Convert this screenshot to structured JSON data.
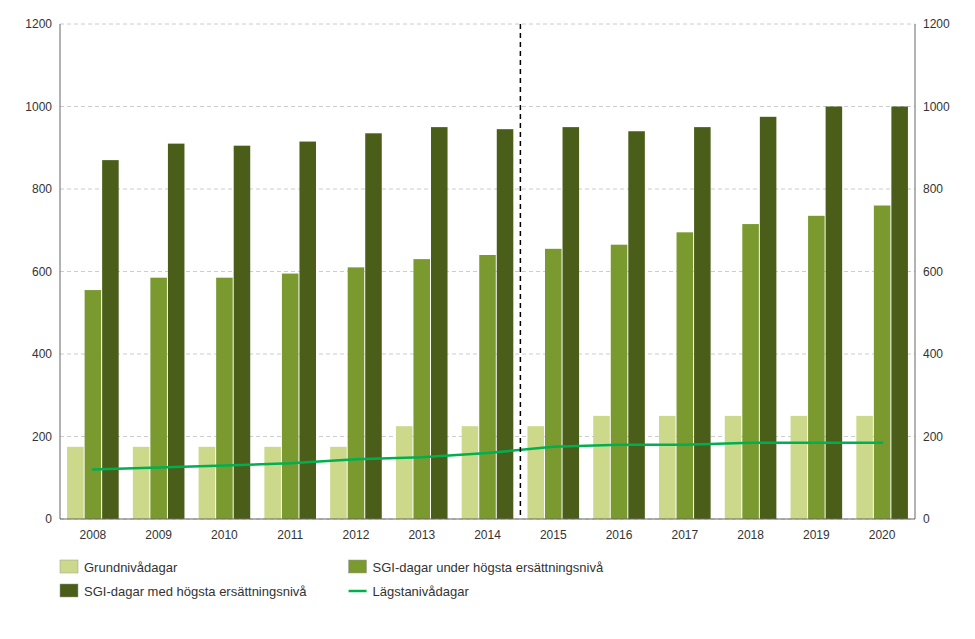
{
  "chart_data": {
    "type": "bar",
    "categories": [
      "2008",
      "2009",
      "2010",
      "2011",
      "2012",
      "2013",
      "2014",
      "2015",
      "2016",
      "2017",
      "2018",
      "2019",
      "2020"
    ],
    "series": [
      {
        "name": "Grundnivådagar",
        "type": "bar",
        "color": "#ccd98a",
        "values": [
          175,
          175,
          175,
          175,
          175,
          225,
          225,
          225,
          250,
          250,
          250,
          250,
          250
        ]
      },
      {
        "name": "SGI-dagar under högsta ersättningsnivå",
        "type": "bar",
        "color": "#7a9a30",
        "values": [
          555,
          585,
          585,
          595,
          610,
          630,
          640,
          655,
          665,
          695,
          715,
          735,
          760
        ]
      },
      {
        "name": "SGI-dagar med högsta ersättningsnivå",
        "type": "bar",
        "color": "#4a5e1a",
        "values": [
          870,
          910,
          905,
          915,
          935,
          950,
          945,
          950,
          940,
          950,
          975,
          1000,
          1000
        ]
      },
      {
        "name": "Lägstanivådagar",
        "type": "line",
        "color": "#00b050",
        "values": [
          120,
          125,
          130,
          135,
          145,
          150,
          160,
          175,
          180,
          180,
          185,
          185,
          185
        ]
      }
    ],
    "ylim": [
      0,
      1200
    ],
    "yticks": [
      0,
      200,
      400,
      600,
      800,
      1000,
      1200
    ],
    "grid": true,
    "legend": "bottom"
  }
}
